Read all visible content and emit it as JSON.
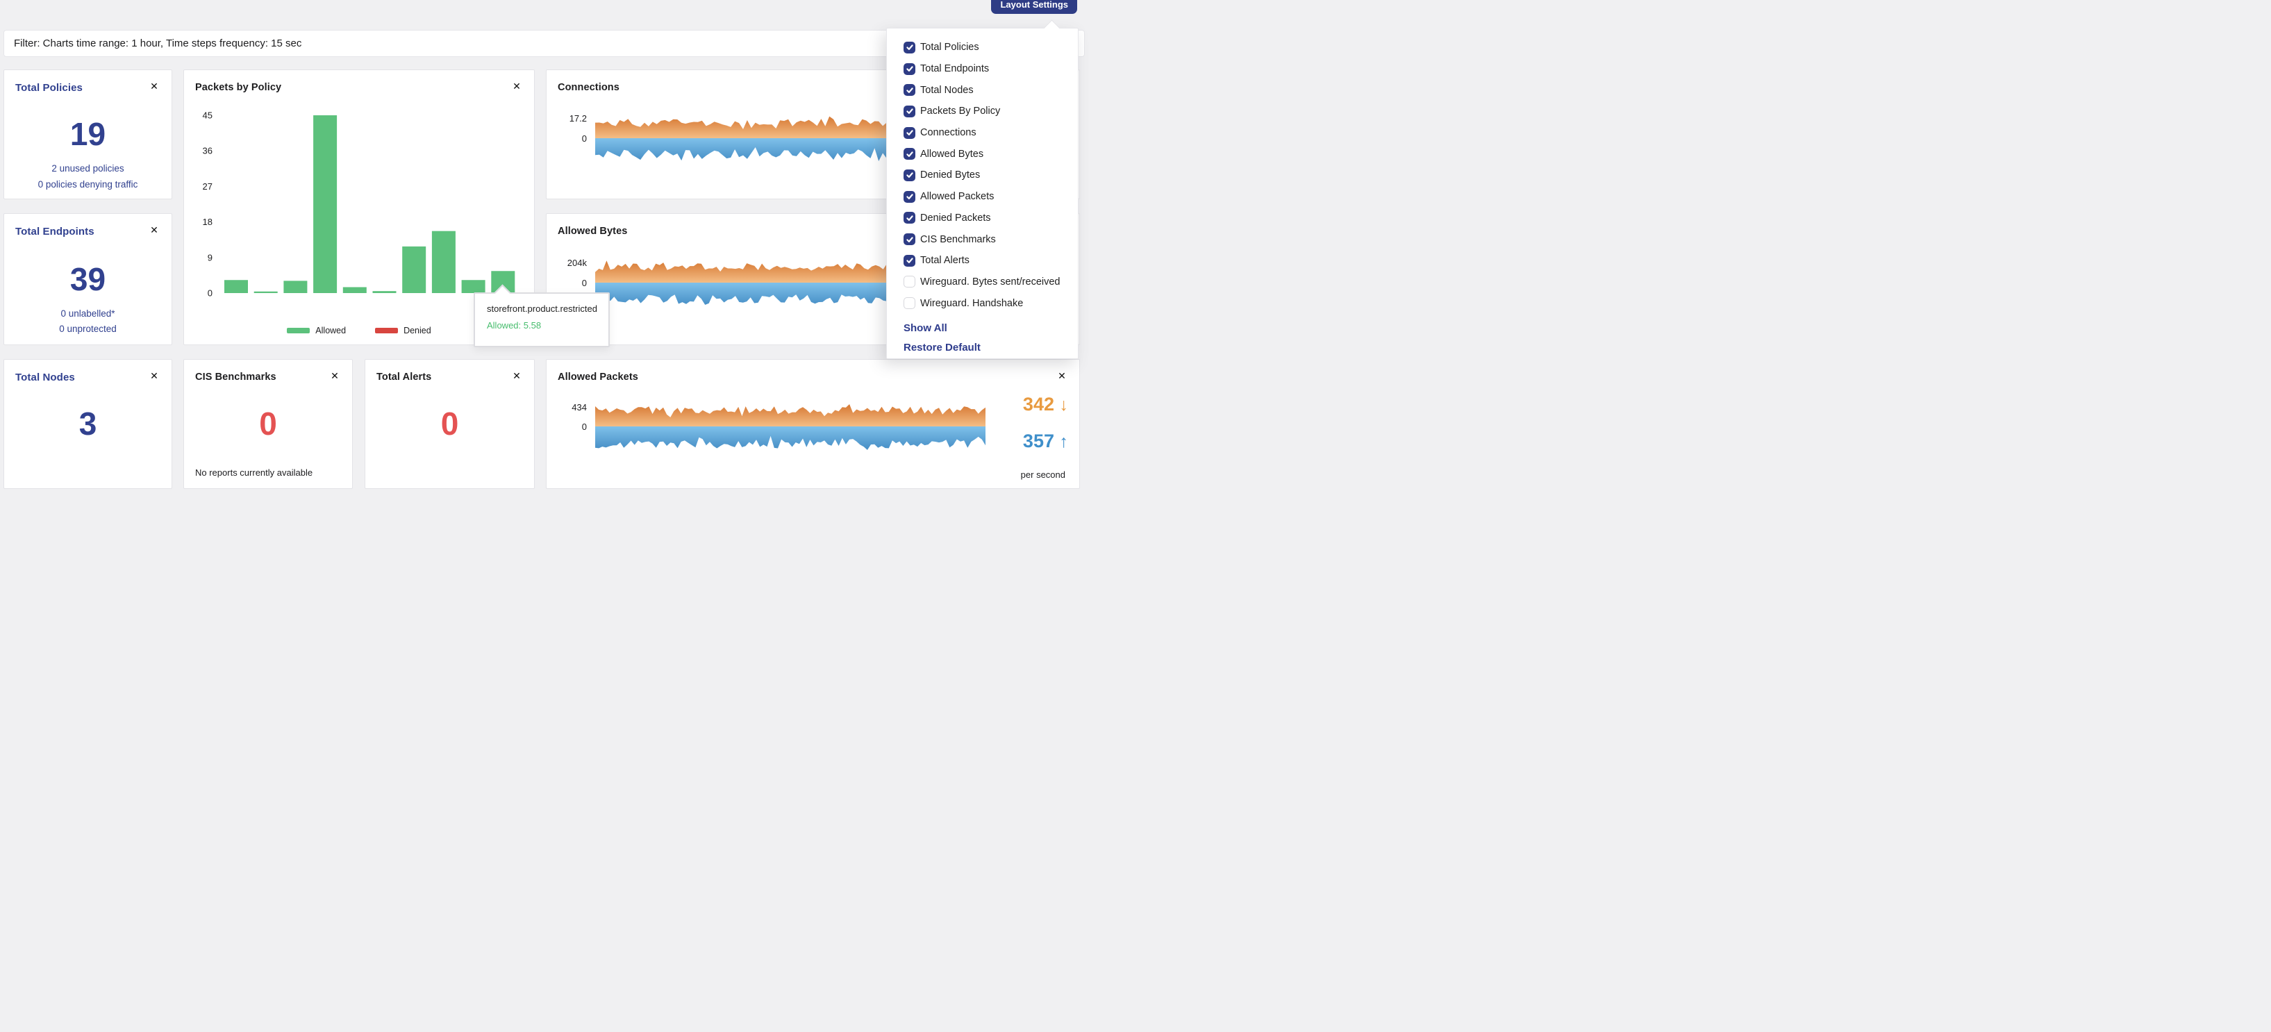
{
  "colors": {
    "navy": "#2e3c85",
    "navy_text": "#31418f",
    "red": "#e45252",
    "bar_green": "#5cc17c",
    "denied_red": "#d8453f",
    "orange_dark": "#d5752f",
    "orange_light": "#f4bd85",
    "blue_light": "#7fc1ea",
    "blue_dark": "#3c85bf",
    "stat_orange": "#e89a3f",
    "stat_blue": "#3f8fca",
    "background": "#f0f0f2"
  },
  "header": {
    "layout_settings_label": "Layout Settings"
  },
  "filter_bar": {
    "text": "Filter: Charts time range: 1 hour, Time steps frequency: 15 sec"
  },
  "layout_settings": {
    "items": [
      {
        "label": "Total Policies",
        "checked": true
      },
      {
        "label": "Total Endpoints",
        "checked": true
      },
      {
        "label": "Total Nodes",
        "checked": true
      },
      {
        "label": "Packets By Policy",
        "checked": true
      },
      {
        "label": "Connections",
        "checked": true
      },
      {
        "label": "Allowed Bytes",
        "checked": true
      },
      {
        "label": "Denied Bytes",
        "checked": true
      },
      {
        "label": "Allowed Packets",
        "checked": true
      },
      {
        "label": "Denied Packets",
        "checked": true
      },
      {
        "label": "CIS Benchmarks",
        "checked": true
      },
      {
        "label": "Total Alerts",
        "checked": true
      },
      {
        "label": "Wireguard. Bytes sent/received",
        "checked": false
      },
      {
        "label": "Wireguard. Handshake",
        "checked": false
      }
    ],
    "show_all": "Show All",
    "restore_default": "Restore Default"
  },
  "cards": {
    "total_policies": {
      "title": "Total Policies",
      "value": "19",
      "line1": "2 unused policies",
      "line2": "0 policies denying traffic",
      "close": "✕"
    },
    "total_endpoints": {
      "title": "Total Endpoints",
      "value": "39",
      "line1": "0 unlabelled*",
      "line2": "0 unprotected",
      "close": "✕"
    },
    "total_nodes": {
      "title": "Total Nodes",
      "value": "3",
      "close": "✕"
    },
    "cis_benchmarks": {
      "title": "CIS Benchmarks",
      "value": "0",
      "note": "No reports currently available",
      "close": "✕"
    },
    "total_alerts": {
      "title": "Total Alerts",
      "value": "0",
      "close": "✕"
    }
  },
  "chart_data": [
    {
      "id": "packets_by_policy",
      "type": "bar",
      "title": "Packets by Policy",
      "ylabels": [
        "45",
        "36",
        "27",
        "18",
        "9",
        "0"
      ],
      "ymax": 45,
      "grid": false,
      "values": [
        3.3,
        0.4,
        3.1,
        45,
        1.5,
        0.5,
        11.8,
        15.7,
        3.3,
        5.58
      ],
      "legend": [
        {
          "label": "Allowed",
          "color": "#5cc17c"
        },
        {
          "label": "Denied",
          "color": "#d8453f"
        }
      ],
      "legend_position": "bottom-center",
      "tooltip": {
        "title": "storefront.product.restricted",
        "value_line": "Allowed: 5.58"
      }
    },
    {
      "id": "connections",
      "type": "mirror_area",
      "title": "Connections",
      "ylabels": [
        "17.2",
        "0"
      ],
      "series": [
        {
          "name": "upper",
          "color": "orange-gradient"
        },
        {
          "name": "lower",
          "color": "blue-gradient"
        }
      ],
      "wave": {
        "seed": 11,
        "points": 96,
        "top_mean": 22,
        "top_jitter": 6,
        "bottom_mean": 23,
        "bottom_jitter": 7
      }
    },
    {
      "id": "allowed_bytes",
      "type": "mirror_area",
      "title": "Allowed Bytes",
      "ylabels": [
        "204k",
        "0"
      ],
      "series": [
        {
          "name": "upper",
          "color": "orange-gradient"
        },
        {
          "name": "lower",
          "color": "blue-gradient"
        }
      ],
      "wave": {
        "seed": 23,
        "points": 104,
        "top_mean": 23,
        "top_jitter": 5,
        "bottom_mean": 24,
        "bottom_jitter": 7
      }
    },
    {
      "id": "allowed_packets",
      "type": "mirror_area",
      "title": "Allowed Packets",
      "ylabels": [
        "434",
        "0"
      ],
      "series": [
        {
          "name": "upper",
          "color": "orange-gradient"
        },
        {
          "name": "lower",
          "color": "blue-gradient"
        }
      ],
      "wave": {
        "seed": 37,
        "points": 110,
        "top_mean": 23,
        "top_jitter": 6,
        "bottom_mean": 25,
        "bottom_jitter": 7
      },
      "stats": {
        "down_value": "342",
        "down_arrow": "↓",
        "up_value": "357",
        "up_arrow": "↑",
        "unit": "per second"
      }
    }
  ]
}
